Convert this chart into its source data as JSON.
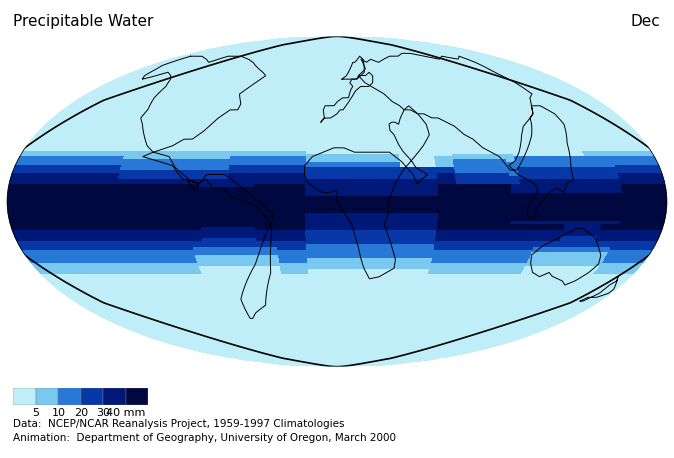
{
  "title_left": "Precipitable Water",
  "title_right": "Dec",
  "colorbar_labels": [
    "5",
    "10",
    "20",
    "30",
    "40 mm"
  ],
  "colorbar_colors": [
    "#c0eef8",
    "#78c8f0",
    "#2878d8",
    "#0838a8",
    "#001878",
    "#000840"
  ],
  "colorbar_bounds": [
    0,
    5,
    10,
    20,
    30,
    40,
    60
  ],
  "footnote1": "Data:  NCEP/NCAR Reanalysis Project, 1959-1997 Climatologies",
  "footnote2": "Animation:  Department of Geography, University of Oregon, March 2000",
  "bg_color": "#ffffff"
}
